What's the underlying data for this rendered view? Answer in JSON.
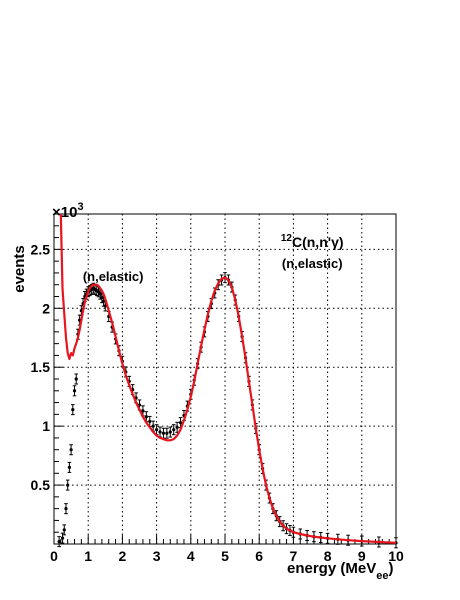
{
  "chart_data": {
    "type": "line",
    "xlabel": "energy (MeV",
    "xlabel_subscript": "ee",
    "xlabel_close": ")",
    "ylabel": "events",
    "y_multiplier": "×10",
    "y_multiplier_exp": "3",
    "xlim": [
      0,
      10
    ],
    "ylim": [
      0,
      2.8
    ],
    "x_ticks": [
      0,
      1,
      2,
      3,
      4,
      5,
      6,
      7,
      8,
      9,
      10
    ],
    "y_ticks": [
      0.5,
      1,
      1.5,
      2,
      2.5
    ],
    "grid": true,
    "annotations": [
      {
        "text": "(n,elastic)",
        "x": 1.73,
        "y": 2.23
      },
      {
        "text_sup": "12",
        "text": "C(n,n'γ)",
        "x": 7.55,
        "y": 2.52
      },
      {
        "text": "(n,elastic)",
        "x": 7.55,
        "y": 2.34
      }
    ],
    "series": [
      {
        "style": "red-line",
        "color": "#e8141e",
        "x": [
          0.2,
          0.25,
          0.3,
          0.35,
          0.4,
          0.45,
          0.5,
          0.55,
          0.6,
          0.65,
          0.7,
          0.75,
          0.8,
          0.85,
          0.9,
          0.95,
          1.0,
          1.05,
          1.1,
          1.15,
          1.2,
          1.25,
          1.3,
          1.35,
          1.4,
          1.45,
          1.5,
          1.6,
          1.7,
          1.8,
          1.9,
          2.0,
          2.1,
          2.2,
          2.3,
          2.4,
          2.5,
          2.6,
          2.7,
          2.8,
          2.9,
          3.0,
          3.1,
          3.2,
          3.3,
          3.4,
          3.5,
          3.6,
          3.7,
          3.8,
          3.9,
          4.0,
          4.1,
          4.2,
          4.3,
          4.4,
          4.5,
          4.6,
          4.7,
          4.8,
          4.9,
          5.0,
          5.1,
          5.2,
          5.3,
          5.4,
          5.5,
          5.6,
          5.7,
          5.8,
          5.9,
          6.0,
          6.1,
          6.2,
          6.3,
          6.4,
          6.5,
          6.6,
          6.7,
          6.8,
          6.9,
          7.0,
          7.2,
          7.4,
          7.6,
          7.8,
          8.0,
          8.3,
          8.6,
          9.0,
          9.5,
          10.0
        ],
        "values": [
          2.8,
          2.17,
          1.95,
          1.75,
          1.62,
          1.57,
          1.62,
          1.6,
          1.66,
          1.7,
          1.75,
          1.82,
          1.9,
          1.98,
          2.05,
          2.1,
          2.14,
          2.17,
          2.19,
          2.2,
          2.2,
          2.2,
          2.19,
          2.17,
          2.15,
          2.12,
          2.08,
          1.98,
          1.88,
          1.76,
          1.64,
          1.53,
          1.43,
          1.35,
          1.27,
          1.2,
          1.14,
          1.08,
          1.03,
          0.99,
          0.95,
          0.92,
          0.9,
          0.89,
          0.88,
          0.88,
          0.89,
          0.92,
          0.97,
          1.05,
          1.14,
          1.25,
          1.38,
          1.53,
          1.68,
          1.82,
          1.95,
          2.06,
          2.15,
          2.21,
          2.25,
          2.26,
          2.24,
          2.18,
          2.07,
          1.93,
          1.76,
          1.58,
          1.38,
          1.18,
          0.98,
          0.8,
          0.64,
          0.5,
          0.39,
          0.3,
          0.24,
          0.19,
          0.155,
          0.13,
          0.115,
          0.1,
          0.085,
          0.072,
          0.062,
          0.055,
          0.048,
          0.04,
          0.032,
          0.025,
          0.017,
          0.01
        ]
      },
      {
        "style": "black-points-with-error-bars",
        "color": "#000000",
        "x": [
          0.15,
          0.25,
          0.3,
          0.35,
          0.4,
          0.45,
          0.5,
          0.55,
          0.6,
          0.65,
          0.7,
          0.75,
          0.8,
          0.85,
          0.9,
          0.95,
          1.0,
          1.05,
          1.1,
          1.15,
          1.2,
          1.25,
          1.3,
          1.35,
          1.4,
          1.45,
          1.5,
          1.6,
          1.7,
          1.8,
          1.9,
          2.0,
          2.1,
          2.2,
          2.3,
          2.4,
          2.5,
          2.6,
          2.7,
          2.8,
          2.9,
          3.0,
          3.1,
          3.2,
          3.3,
          3.4,
          3.5,
          3.6,
          3.7,
          3.8,
          3.9,
          4.0,
          4.1,
          4.2,
          4.3,
          4.4,
          4.5,
          4.6,
          4.7,
          4.8,
          4.9,
          5.0,
          5.1,
          5.2,
          5.3,
          5.4,
          5.5,
          5.6,
          5.7,
          5.8,
          5.9,
          6.0,
          6.1,
          6.2,
          6.3,
          6.4,
          6.5,
          6.6,
          6.7,
          6.8,
          6.9,
          7.0,
          7.2,
          7.4,
          7.6,
          7.8,
          8.0,
          8.3,
          8.6,
          9.0,
          9.5,
          10.0
        ],
        "values": [
          0.02,
          0.05,
          0.12,
          0.3,
          0.5,
          0.65,
          0.8,
          1.14,
          1.3,
          1.4,
          1.78,
          1.9,
          1.98,
          2.04,
          2.1,
          2.12,
          2.14,
          2.15,
          2.16,
          2.17,
          2.16,
          2.15,
          2.14,
          2.12,
          2.09,
          2.06,
          2.02,
          1.93,
          1.84,
          1.74,
          1.64,
          1.55,
          1.46,
          1.38,
          1.31,
          1.24,
          1.18,
          1.13,
          1.08,
          1.04,
          1.0,
          0.97,
          0.95,
          0.94,
          0.94,
          0.95,
          0.97,
          0.99,
          1.03,
          1.09,
          1.17,
          1.27,
          1.39,
          1.53,
          1.67,
          1.8,
          1.93,
          2.04,
          2.13,
          2.2,
          2.24,
          2.26,
          2.24,
          2.18,
          2.07,
          1.93,
          1.76,
          1.58,
          1.38,
          1.18,
          0.98,
          0.8,
          0.64,
          0.5,
          0.39,
          0.3,
          0.24,
          0.19,
          0.155,
          0.13,
          0.115,
          0.1,
          0.085,
          0.072,
          0.062,
          0.055,
          0.048,
          0.04,
          0.032,
          0.025,
          0.017,
          0.01
        ]
      }
    ]
  }
}
